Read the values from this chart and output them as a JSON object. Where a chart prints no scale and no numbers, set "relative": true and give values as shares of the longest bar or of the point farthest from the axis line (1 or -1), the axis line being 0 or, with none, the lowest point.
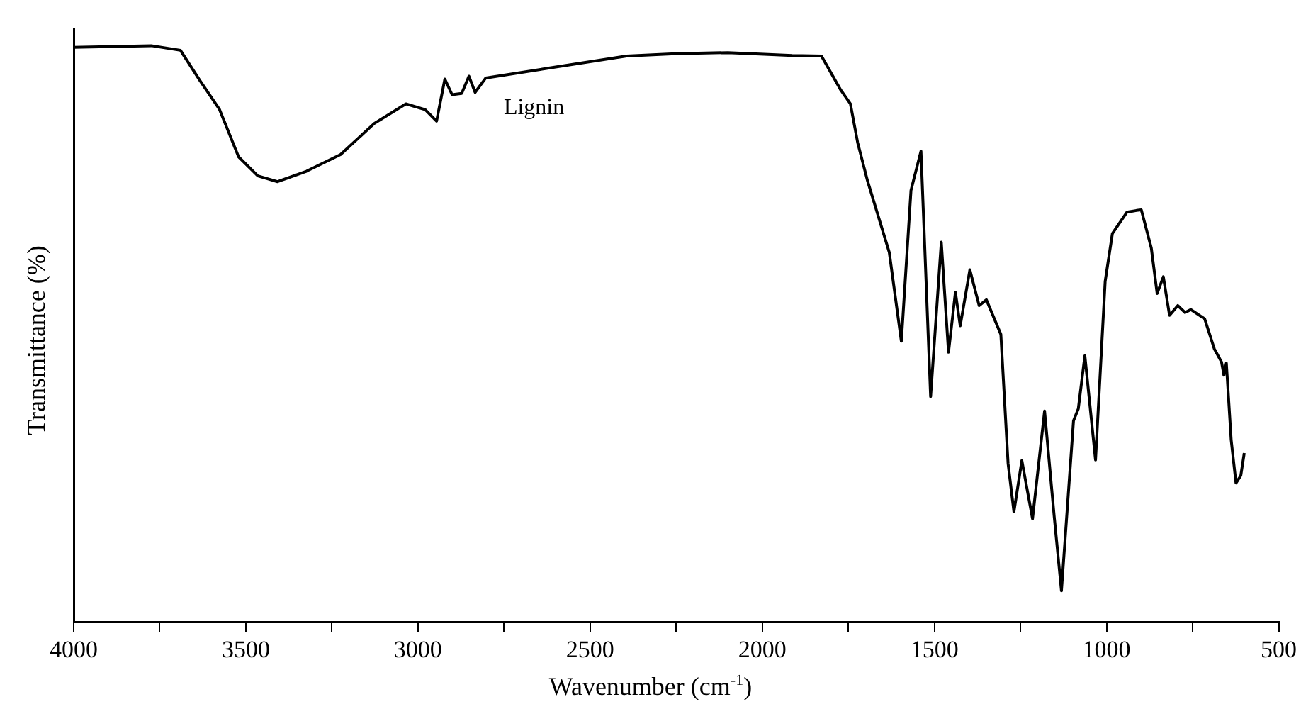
{
  "chart_data": {
    "type": "line",
    "xlabel": "Wavenumber (cm$^{-1}$)",
    "ylabel": "Transmittance (%)",
    "relative": true,
    "x": [
      4000,
      3775,
      3690,
      3634,
      3577,
      3521,
      3465,
      3408,
      3324,
      3225,
      3127,
      3035,
      2979,
      2946,
      2922,
      2901,
      2873,
      2852,
      2834,
      2803,
      2620,
      2394,
      2253,
      2100,
      1913,
      1828,
      1772,
      1744,
      1723,
      1694,
      1631,
      1596,
      1568,
      1539,
      1511,
      1480,
      1459,
      1439,
      1425,
      1397,
      1370,
      1349,
      1307,
      1286,
      1269,
      1246,
      1215,
      1180,
      1152,
      1131,
      1096,
      1082,
      1063,
      1032,
      1004,
      983,
      941,
      913,
      899,
      870,
      853,
      835,
      817,
      793,
      772,
      755,
      715,
      687,
      666,
      659,
      652,
      638,
      624,
      610,
      600
    ],
    "xlim": [
      4000,
      500
    ],
    "xticks": [
      4000,
      {
        "value": 3750,
        "label": null
      },
      3500,
      {
        "value": 3250,
        "label": null
      },
      3000,
      {
        "value": 2750,
        "label": null
      },
      2500,
      {
        "value": 2250,
        "label": null
      },
      2000,
      {
        "value": 1750,
        "label": null
      },
      1500,
      {
        "value": 1250,
        "label": null
      },
      1000,
      {
        "value": 750,
        "label": null
      },
      500
    ],
    "series": [
      {
        "name": "Lignin",
        "color": "#000000",
        "values": [
          0.997,
          1.0,
          0.992,
          0.94,
          0.89,
          0.807,
          0.774,
          0.764,
          0.782,
          0.811,
          0.865,
          0.899,
          0.889,
          0.869,
          0.942,
          0.915,
          0.917,
          0.947,
          0.919,
          0.944,
          0.961,
          0.982,
          0.986,
          0.988,
          0.983,
          0.982,
          0.923,
          0.899,
          0.832,
          0.765,
          0.641,
          0.487,
          0.749,
          0.817,
          0.391,
          0.659,
          0.468,
          0.572,
          0.514,
          0.611,
          0.549,
          0.559,
          0.499,
          0.275,
          0.191,
          0.28,
          0.179,
          0.366,
          0.183,
          0.054,
          0.349,
          0.37,
          0.462,
          0.281,
          0.591,
          0.674,
          0.711,
          0.714,
          0.715,
          0.649,
          0.57,
          0.599,
          0.532,
          0.549,
          0.537,
          0.542,
          0.526,
          0.474,
          0.451,
          0.428,
          0.449,
          0.316,
          0.241,
          0.254,
          0.293
        ]
      }
    ]
  }
}
